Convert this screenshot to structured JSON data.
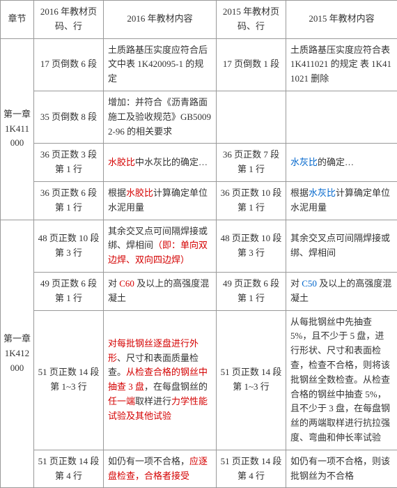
{
  "headers": {
    "col1": "章节",
    "col2": "2016 年教材页码、行",
    "col3": "2016 年教材内容",
    "col4": "2015 年教材页码、行",
    "col5": "2015 年教材内容"
  },
  "chapters": {
    "ch1": {
      "line1": "第一章",
      "line2": "1K411000"
    },
    "ch2": {
      "line1": "第一章",
      "line2": "1K412000"
    }
  },
  "rows": {
    "r1": {
      "page16": "17 页倒数 6 段",
      "content16": "土质路基压实度应符合后文中表 1K420095-1 的规定",
      "page15": "17 页倒数 1 段",
      "content15": "土质路基压实度应符合表 1K411021 的规定 表 1K411021 删除"
    },
    "r2": {
      "page16": "35 页倒数 8 段",
      "content16": "增加：并符合《沥青路面施工及验收规范》GB50092-96 的相关要求",
      "page15": "",
      "content15": ""
    },
    "r3": {
      "page16": "36 页正数 3 段第 1 行",
      "c16_a": "水胶比",
      "c16_b": "中水灰比的确定…",
      "page15": "36 页正数 7 段第 1 行",
      "c15_a": "水灰比",
      "c15_b": "的确定…"
    },
    "r4": {
      "page16": "36 页正数 6 段第 1 行",
      "c16_a": "根据",
      "c16_b": "水胶比",
      "c16_c": "计算确定单位水泥用量",
      "page15": "36 页正数 10 段第 1 行",
      "c15_a": "根据",
      "c15_b": "水灰比",
      "c15_c": "计算确定单位水泥用量"
    },
    "r5": {
      "page16": "48 页正数 10 段第 3 行",
      "c16_a": "其余交叉点可间隔焊接或绑、焊相间",
      "c16_b": "（即：单向双边焊、双向四边焊）",
      "page15": "48 页正数 10 段第 3 行",
      "c15": "其余交叉点可间隔焊接或绑、焊相间"
    },
    "r6": {
      "page16": "49 页正数 6 段第 1 行",
      "c16_a": "对 ",
      "c16_b": "C60",
      "c16_c": " 及以上的高强度混凝土",
      "page15": "49 页正数 6 段第 1 行",
      "c15_a": "对 ",
      "c15_b": "C50",
      "c15_c": " 及以上的高强度混凝土"
    },
    "r7": {
      "page16": "51 页正数 14 段第 1~3 行",
      "c16_a": "对每批钢丝逐盘进行外形",
      "c16_b": "、尺寸和表面质量检查。",
      "c16_c": "从检查合格的钢丝中抽查 3 盘",
      "c16_d": "，在每盘钢丝的",
      "c16_e": "任一端",
      "c16_f": "取样进行",
      "c16_g": "力学性能试验及其他试验",
      "page15": "51 页正数 14 段第 1~3 行",
      "c15": "从每批钢丝中先抽查 5%，且不少于 5 盘，进行形状、尺寸和表面检查，检查不合格，则将该批钢丝全数检查。从检查合格的钢丝中抽查 5%，且不少于 3 盘，在每盘钢丝的两端取样进行抗拉强度、弯曲和伸长率试验"
    },
    "r8": {
      "page16": "51 页正数 14 段第 4 行",
      "c16_a": "如仍有一项不合格，",
      "c16_b": "应逐盘检查，合格者接受",
      "page15": "51 页正数 14 段第 4 行",
      "c15": "如仍有一项不合格，则该批钢丝为不合格"
    }
  }
}
